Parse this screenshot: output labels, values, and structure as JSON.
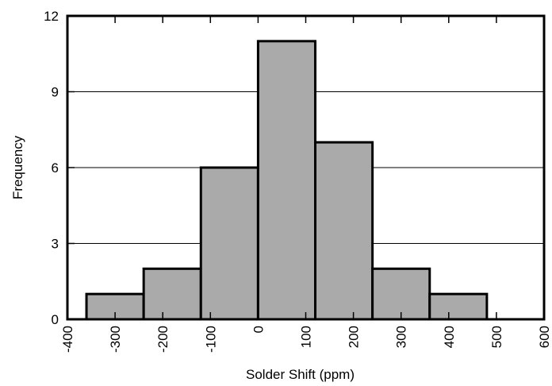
{
  "chart_data": {
    "type": "bar",
    "subtype": "histogram",
    "title": "",
    "xlabel": "Solder Shift (ppm)",
    "ylabel": "Frequency",
    "xlim": [
      -400,
      600
    ],
    "ylim": [
      0,
      12
    ],
    "x_ticks": [
      "-400",
      "-300",
      "-200",
      "-100",
      "0",
      "100",
      "200",
      "300",
      "400",
      "500",
      "600"
    ],
    "y_ticks": [
      "0",
      "3",
      "6",
      "9",
      "12"
    ],
    "bins": [
      {
        "start": -360,
        "end": -240,
        "value": 1
      },
      {
        "start": -240,
        "end": -120,
        "value": 2
      },
      {
        "start": -120,
        "end": 0,
        "value": 6
      },
      {
        "start": 0,
        "end": 120,
        "value": 11
      },
      {
        "start": 120,
        "end": 240,
        "value": 7
      },
      {
        "start": 240,
        "end": 360,
        "value": 2
      },
      {
        "start": 360,
        "end": 480,
        "value": 1
      }
    ],
    "bar_color": "#aaaaaa",
    "grid": "horizontal",
    "legend": "none"
  }
}
